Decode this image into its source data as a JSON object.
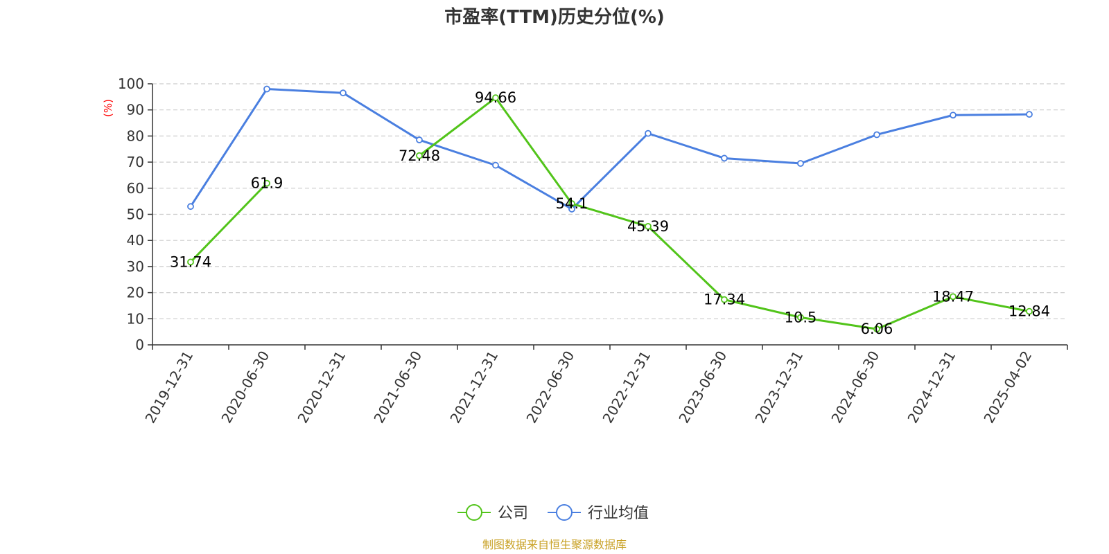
{
  "chart_data": {
    "type": "line",
    "title": "市盈率(TTM)历史分位(%)",
    "ylabel": "(%)",
    "ylim": [
      0,
      100
    ],
    "yticks": [
      0,
      10,
      20,
      30,
      40,
      50,
      60,
      70,
      80,
      90,
      100
    ],
    "grid": true,
    "legend_position": "bottom-center",
    "categories": [
      "2019-12-31",
      "2020-06-30",
      "2020-12-31",
      "2021-06-30",
      "2021-12-31",
      "2022-06-30",
      "2022-12-31",
      "2023-06-30",
      "2023-12-31",
      "2024-06-30",
      "2024-12-31",
      "2025-04-02"
    ],
    "series": [
      {
        "name": "公司",
        "color": "#52c41a",
        "values": [
          31.74,
          61.9,
          null,
          72.48,
          94.66,
          54.1,
          45.39,
          17.34,
          10.5,
          6.06,
          18.47,
          12.84
        ],
        "labels": [
          "31.74",
          "61.9",
          "",
          "72.48",
          "94.66",
          "54.1",
          "45.39",
          "17.34",
          "10.5",
          "6.06",
          "18.47",
          "12.84"
        ]
      },
      {
        "name": "行业均值",
        "color": "#4a7fe0",
        "values": [
          53,
          98,
          96.5,
          78.5,
          68.8,
          52,
          81,
          71.5,
          69.5,
          80.5,
          88,
          88.3
        ]
      }
    ]
  },
  "source_note": "制图数据来自恒生聚源数据库",
  "colors": {
    "axis": "#333333",
    "grid": "#cccccc",
    "ylabel": "#ff0000",
    "source": "#c9a227"
  }
}
